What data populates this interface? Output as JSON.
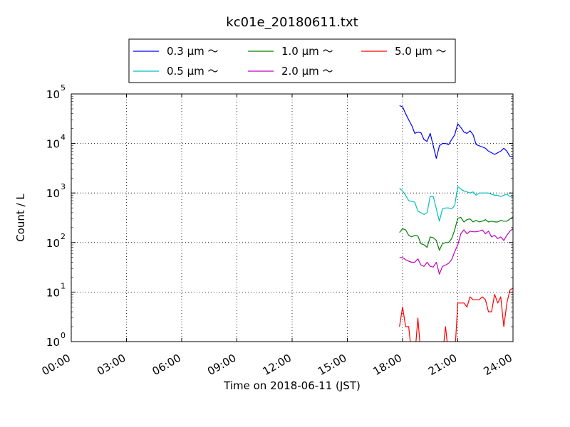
{
  "chart_data": {
    "type": "line",
    "title": "kc01e_20180611.txt",
    "xlabel": "Time on 2018-06-11 (JST)",
    "ylabel": "Count / L",
    "x_tick_labels": [
      "00:00",
      "03:00",
      "06:00",
      "09:00",
      "12:00",
      "15:00",
      "18:00",
      "21:00",
      "24:00"
    ],
    "xlim": [
      "00:00",
      "24:00"
    ],
    "y_scale": "log",
    "ylim": [
      1,
      100000
    ],
    "y_tick_labels": [
      {
        "base": "10",
        "exp": "0"
      },
      {
        "base": "10",
        "exp": "1"
      },
      {
        "base": "10",
        "exp": "2"
      },
      {
        "base": "10",
        "exp": "3"
      },
      {
        "base": "10",
        "exp": "4"
      },
      {
        "base": "10",
        "exp": "5"
      }
    ],
    "grid": true,
    "legend_position": "top-center",
    "x": [
      "17:50",
      "18:00",
      "18:10",
      "18:20",
      "18:30",
      "18:40",
      "18:50",
      "19:00",
      "19:10",
      "19:20",
      "19:30",
      "19:40",
      "19:50",
      "20:00",
      "20:10",
      "20:20",
      "20:30",
      "20:40",
      "20:50",
      "21:00",
      "21:10",
      "21:20",
      "21:30",
      "21:40",
      "21:50",
      "22:00",
      "22:10",
      "22:20",
      "22:30",
      "22:40",
      "22:50",
      "23:00",
      "23:10",
      "23:20",
      "23:30",
      "23:40",
      "23:50",
      "24:00"
    ],
    "series": [
      {
        "name": "0.3 μm ～",
        "color": "#0000ff",
        "values": [
          58000,
          55000,
          40000,
          30000,
          23000,
          16000,
          17000,
          16500,
          12000,
          11000,
          16000,
          9000,
          5000,
          9000,
          10000,
          10000,
          9500,
          12000,
          15000,
          25000,
          21000,
          17000,
          16000,
          18000,
          15000,
          9500,
          9000,
          8500,
          8000,
          7000,
          6500,
          6000,
          6500,
          7000,
          8000,
          7000,
          5500,
          5500
        ]
      },
      {
        "name": "0.5 μm ～",
        "color": "#00bfbf",
        "values": [
          1250,
          1100,
          900,
          700,
          680,
          650,
          430,
          400,
          370,
          400,
          850,
          850,
          480,
          270,
          480,
          500,
          500,
          480,
          560,
          1350,
          1200,
          1100,
          1050,
          1000,
          1050,
          900,
          1000,
          1000,
          1000,
          1000,
          950,
          900,
          900,
          850,
          900,
          950,
          850,
          850
        ]
      },
      {
        "name": "1.0 μm ～",
        "color": "#008000",
        "values": [
          160,
          190,
          180,
          140,
          130,
          140,
          135,
          95,
          90,
          80,
          130,
          125,
          110,
          70,
          95,
          100,
          100,
          120,
          180,
          310,
          320,
          260,
          290,
          300,
          260,
          280,
          260,
          270,
          290,
          260,
          270,
          260,
          260,
          280,
          270,
          270,
          300,
          330
        ]
      },
      {
        "name": "2.0 μm ～",
        "color": "#bf00bf",
        "values": [
          50,
          50,
          45,
          42,
          40,
          40,
          47,
          35,
          33,
          40,
          33,
          32,
          40,
          23,
          33,
          35,
          38,
          45,
          65,
          90,
          150,
          180,
          150,
          170,
          165,
          165,
          170,
          180,
          150,
          170,
          130,
          140,
          120,
          130,
          110,
          140,
          170,
          190
        ]
      },
      {
        "name": "5.0 μm ～",
        "color": "#ff0000",
        "values": [
          2,
          5,
          2,
          2,
          1,
          1,
          3,
          1,
          1,
          1,
          1,
          1,
          1,
          1,
          1,
          2,
          1,
          1,
          1,
          6,
          6,
          6,
          5,
          8,
          7,
          7,
          7,
          8,
          7,
          4,
          4,
          9,
          6,
          8,
          2,
          6,
          11,
          12
        ]
      }
    ]
  }
}
